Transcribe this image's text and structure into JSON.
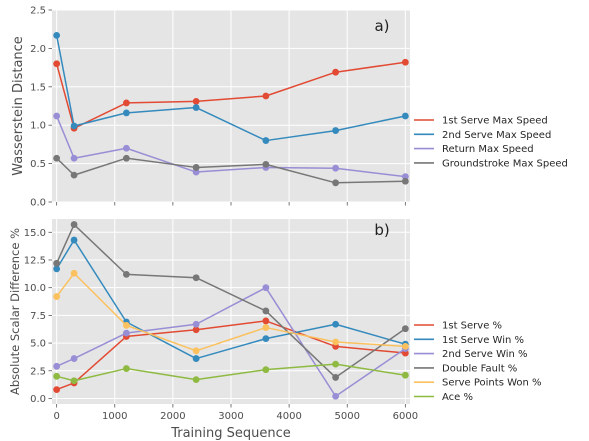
{
  "chart_data": [
    {
      "type": "line",
      "panel_label": "a)",
      "xlabel": "",
      "ylabel": "Wasserstein Distance",
      "xlim": [
        -80,
        6080
      ],
      "ylim": [
        0,
        2.5
      ],
      "xticks": [
        0,
        1000,
        2000,
        3000,
        4000,
        5000,
        6000
      ],
      "yticks": [
        0.0,
        0.5,
        1.0,
        1.5,
        2.0,
        2.5
      ],
      "ytick_labels": [
        "0.0",
        "0.5",
        "1.0",
        "1.5",
        "2.0",
        "2.5"
      ],
      "grid": true,
      "legend_placement": "right",
      "x": [
        0,
        300,
        1200,
        2400,
        3600,
        4800,
        6000
      ],
      "series": [
        {
          "name": "1st Serve Max Speed",
          "color": "#E24A33",
          "values": [
            1.8,
            0.96,
            1.29,
            1.31,
            1.38,
            1.69,
            1.82
          ]
        },
        {
          "name": "2nd Serve Max Speed",
          "color": "#348ABD",
          "values": [
            2.17,
            0.99,
            1.16,
            1.23,
            0.8,
            0.93,
            1.12
          ]
        },
        {
          "name": "Return Max Speed",
          "color": "#988ED5",
          "values": [
            1.12,
            0.57,
            0.7,
            0.39,
            0.45,
            0.44,
            0.33
          ]
        },
        {
          "name": "Groundstroke Max Speed",
          "color": "#777777",
          "values": [
            0.57,
            0.35,
            0.57,
            0.45,
            0.49,
            0.25,
            0.27
          ]
        }
      ]
    },
    {
      "type": "line",
      "panel_label": "b)",
      "xlabel": "Training Sequence",
      "ylabel": "Absolute Scalar Difference %",
      "xlim": [
        -80,
        6080
      ],
      "ylim": [
        -0.5,
        16.2
      ],
      "xticks": [
        0,
        1000,
        2000,
        3000,
        4000,
        5000,
        6000
      ],
      "yticks": [
        0.0,
        2.5,
        5.0,
        7.5,
        10.0,
        12.5,
        15.0
      ],
      "ytick_labels": [
        "0.0",
        "2.5",
        "5.0",
        "7.5",
        "10.0",
        "12.5",
        "15.0"
      ],
      "grid": true,
      "legend_placement": "right",
      "x": [
        0,
        300,
        1200,
        2400,
        3600,
        4800,
        6000
      ],
      "series": [
        {
          "name": "1st Serve %",
          "color": "#E24A33",
          "values": [
            0.8,
            1.4,
            5.6,
            6.2,
            7.0,
            4.7,
            4.1
          ]
        },
        {
          "name": "1st Serve Win %",
          "color": "#348ABD",
          "values": [
            11.7,
            14.3,
            6.9,
            3.6,
            5.4,
            6.7,
            4.9
          ]
        },
        {
          "name": "2nd Serve Win %",
          "color": "#988ED5",
          "values": [
            2.9,
            3.6,
            5.9,
            6.7,
            10.0,
            0.2,
            4.5
          ]
        },
        {
          "name": "Double Fault %",
          "color": "#777777",
          "values": [
            12.2,
            15.7,
            11.2,
            10.9,
            7.9,
            1.9,
            6.3
          ]
        },
        {
          "name": "Serve Points Won %",
          "color": "#FBC15E",
          "values": [
            9.2,
            11.3,
            6.6,
            4.3,
            6.4,
            5.1,
            4.7
          ]
        },
        {
          "name": "Ace %",
          "color": "#8EBA42",
          "values": [
            2.0,
            1.6,
            2.7,
            1.7,
            2.6,
            3.1,
            2.1
          ]
        }
      ]
    }
  ]
}
